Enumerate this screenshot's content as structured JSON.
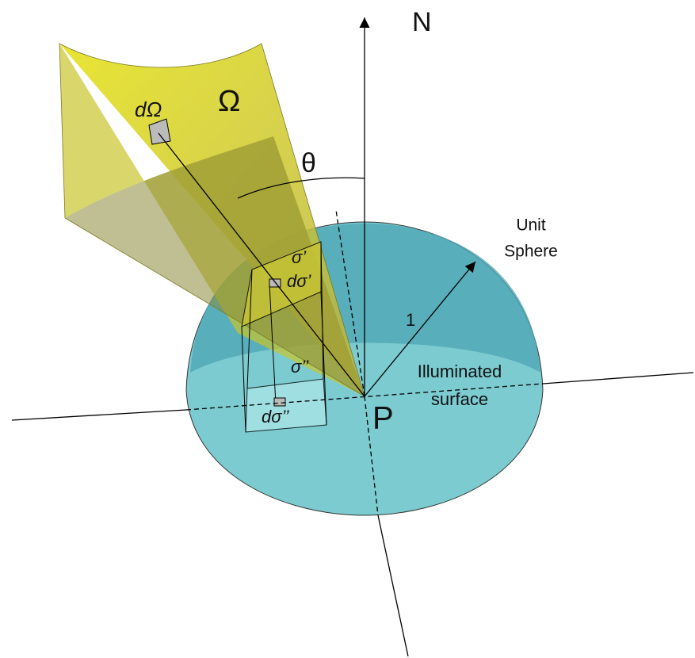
{
  "labels": {
    "north": "N",
    "omega": "Ω",
    "d_omega": "dΩ",
    "theta": "θ",
    "unit_sphere": [
      "Unit",
      "Sphere"
    ],
    "radius": "1",
    "illuminated_surface": [
      "Illuminated",
      "surface"
    ],
    "sigma_prime": "σ’",
    "d_sigma_prime": "dσ’",
    "sigma_double_prime": "σ’’",
    "d_sigma_double_prime": "dσ’’",
    "point": "P"
  }
}
